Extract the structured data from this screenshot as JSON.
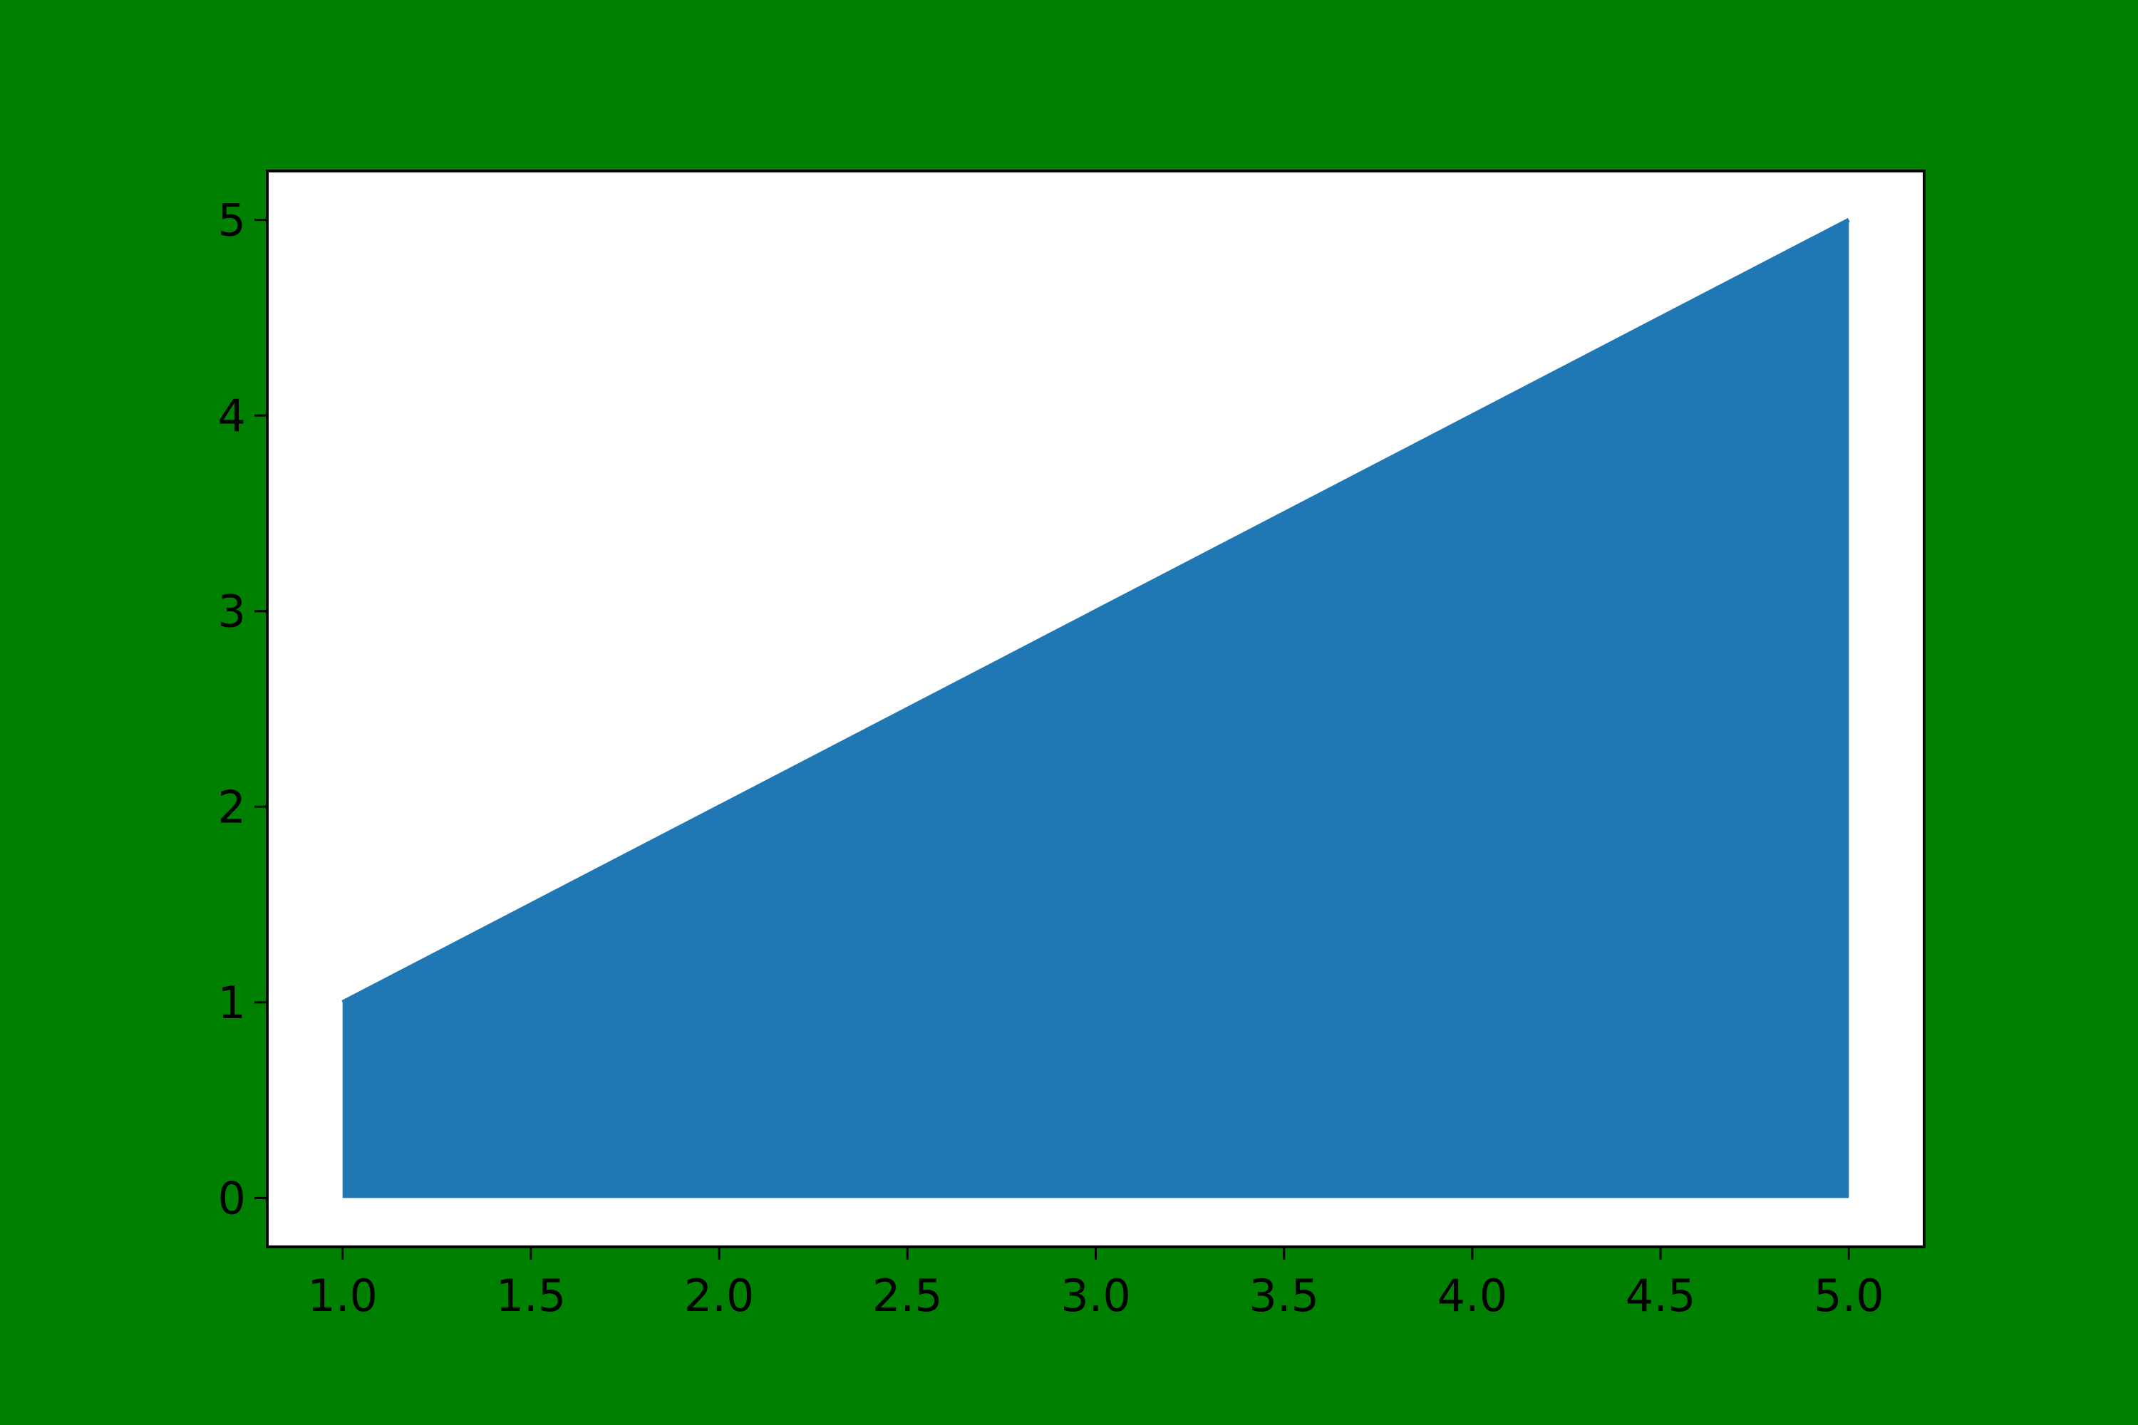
{
  "colors": {
    "figure_background": "#008000",
    "axes_background": "#ffffff",
    "area_fill": "#1f77b4",
    "axis_line": "#000000"
  },
  "chart_data": {
    "type": "area",
    "x": [
      1.0,
      2.0,
      3.0,
      4.0,
      5.0
    ],
    "y": [
      1,
      2,
      3,
      4,
      5
    ],
    "baseline": 0,
    "xlim": [
      0.8,
      5.2
    ],
    "ylim": [
      -0.25,
      5.25
    ],
    "grid": false,
    "x_ticks": [
      1.0,
      1.5,
      2.0,
      2.5,
      3.0,
      3.5,
      4.0,
      4.5,
      5.0
    ],
    "x_tick_labels": [
      "1.0",
      "1.5",
      "2.0",
      "2.5",
      "3.0",
      "3.5",
      "4.0",
      "4.5",
      "5.0"
    ],
    "y_ticks": [
      0,
      1,
      2,
      3,
      4,
      5
    ],
    "y_tick_labels": [
      "0",
      "1",
      "2",
      "3",
      "4",
      "5"
    ]
  }
}
